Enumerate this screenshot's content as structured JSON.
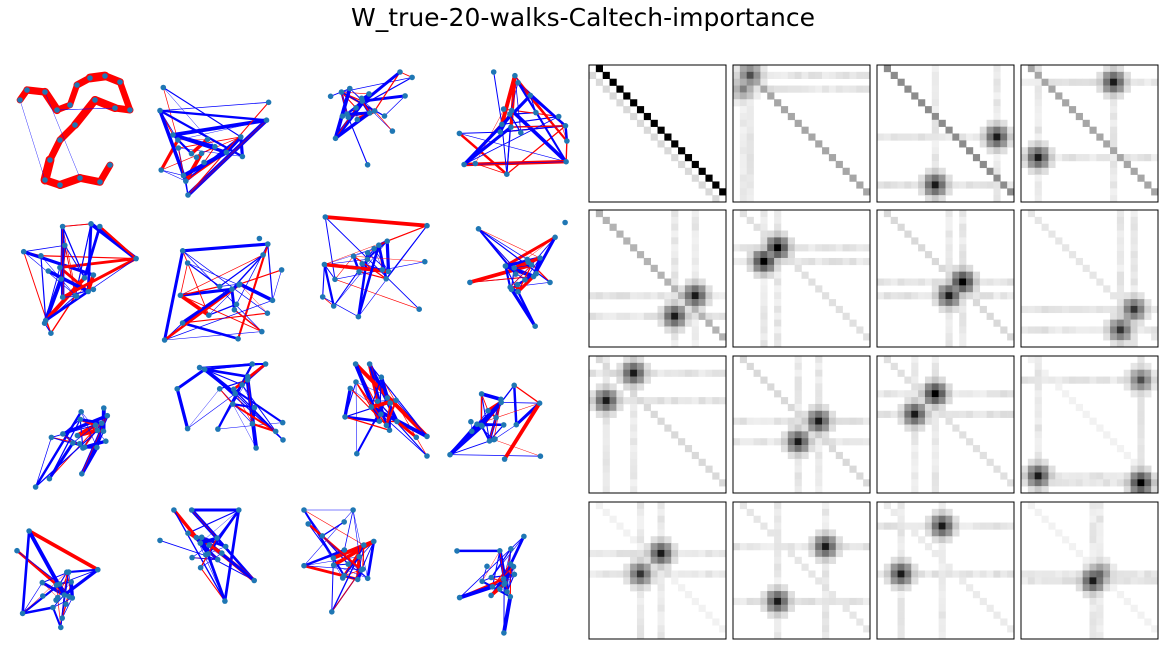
{
  "title": "W_true-20-walks-Caltech-importance",
  "colors": {
    "node": "#1f77b4",
    "edge_positive": "#ff0000",
    "edge_negative": "#0000ff",
    "matrix_dark": "#000000",
    "matrix_light": "#ffffff",
    "frame": "#000000"
  },
  "graph_panels": {
    "count": 16,
    "rows": 4,
    "cols": 4,
    "edge_colors": [
      "red",
      "blue"
    ],
    "node_color": "steelblue"
  },
  "matrix_panels": {
    "count": 16,
    "rows": 4,
    "cols": 4,
    "colormap": "grayscale (white to black)",
    "patterns": [
      {
        "kind": "shifted-diagonal",
        "strength": 1.0,
        "hubs": []
      },
      {
        "kind": "shifted-diagonal",
        "strength": 0.35,
        "hubs": [
          [
            0.08,
            0.05,
            0.7
          ],
          [
            0.05,
            0.15,
            0.5
          ]
        ]
      },
      {
        "kind": "shifted-diagonal",
        "strength": 0.45,
        "hubs": [
          [
            0.92,
            0.5,
            0.9
          ],
          [
            0.4,
            0.92,
            0.9
          ]
        ]
      },
      {
        "kind": "shifted-diagonal",
        "strength": 0.35,
        "hubs": [
          [
            0.7,
            0.12,
            0.9
          ],
          [
            0.12,
            0.7,
            0.9
          ]
        ]
      },
      {
        "kind": "shifted-diagonal",
        "strength": 0.3,
        "hubs": [
          [
            0.78,
            0.65,
            0.9
          ],
          [
            0.62,
            0.8,
            0.9
          ]
        ]
      },
      {
        "kind": "faint-diagonal",
        "strength": 0.12,
        "hubs": [
          [
            0.3,
            0.25,
            1.0
          ],
          [
            0.22,
            0.37,
            1.0
          ]
        ]
      },
      {
        "kind": "faint-diagonal",
        "strength": 0.15,
        "hubs": [
          [
            0.65,
            0.55,
            1.0
          ],
          [
            0.52,
            0.65,
            0.9
          ]
        ]
      },
      {
        "kind": "faint-diagonal",
        "strength": 0.1,
        "hubs": [
          [
            0.85,
            0.72,
            0.8
          ],
          [
            0.75,
            0.92,
            0.8
          ]
        ]
      },
      {
        "kind": "faint-diagonal",
        "strength": 0.15,
        "hubs": [
          [
            0.3,
            0.12,
            0.9
          ],
          [
            0.12,
            0.3,
            0.9
          ]
        ]
      },
      {
        "kind": "faint-diagonal",
        "strength": 0.15,
        "hubs": [
          [
            0.65,
            0.45,
            0.9
          ],
          [
            0.45,
            0.62,
            0.9
          ]
        ]
      },
      {
        "kind": "faint-diagonal",
        "strength": 0.12,
        "hubs": [
          [
            0.42,
            0.25,
            1.0
          ],
          [
            0.25,
            0.4,
            0.9
          ]
        ]
      },
      {
        "kind": "faint-diagonal",
        "strength": 0.05,
        "hubs": [
          [
            0.12,
            0.9,
            0.9
          ],
          [
            0.9,
            0.15,
            0.7
          ],
          [
            0.87,
            0.96,
            1.0
          ]
        ]
      },
      {
        "kind": "faint-diagonal",
        "strength": 0.05,
        "hubs": [
          [
            0.55,
            0.38,
            0.9
          ],
          [
            0.38,
            0.55,
            0.8
          ]
        ]
      },
      {
        "kind": "faint-diagonal",
        "strength": 0.1,
        "hubs": [
          [
            0.7,
            0.3,
            0.9
          ],
          [
            0.3,
            0.72,
            0.9
          ]
        ]
      },
      {
        "kind": "faint-diagonal",
        "strength": 0.08,
        "hubs": [
          [
            0.48,
            0.15,
            0.9
          ],
          [
            0.15,
            0.52,
            0.9
          ]
        ]
      },
      {
        "kind": "faint-diagonal",
        "strength": 0.05,
        "hubs": [
          [
            0.55,
            0.58,
            0.9
          ],
          [
            0.58,
            0.52,
            0.6
          ]
        ]
      }
    ]
  }
}
